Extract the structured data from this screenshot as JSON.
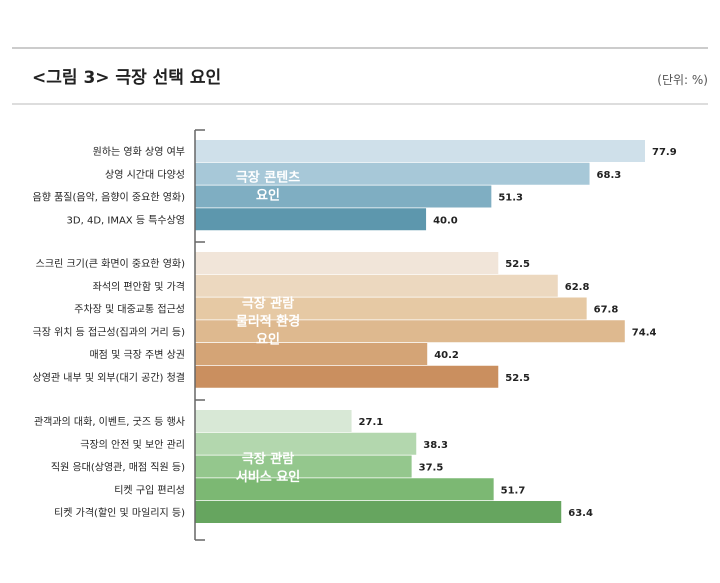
{
  "header": {
    "title": "<그림 3> 극장 선택 요인",
    "unit": "(단위: %)"
  },
  "colors": {
    "rule": "#bbbbbb",
    "axis": "#666666",
    "text": "#222222",
    "group_label_text": "#ffffff"
  },
  "chart_data": {
    "type": "bar",
    "orientation": "horizontal",
    "title": "<그림 3> 극장 선택 요인",
    "unit": "(단위: %)",
    "xlim": [
      0,
      100
    ],
    "groups": [
      {
        "label_lines": [
          "극장 콘텐츠",
          "요인"
        ],
        "items": [
          {
            "category": "원하는 영화 상영 여부",
            "value": 77.9,
            "color": "#cfe0ea"
          },
          {
            "category": "상영 시간대 다양성",
            "value": 68.3,
            "color": "#a7c8d8"
          },
          {
            "category": "음향 품질(음악, 음향이 중요한 영화)",
            "value": 51.3,
            "color": "#7faec2"
          },
          {
            "category": "3D, 4D, IMAX 등 특수상영",
            "value": 40.0,
            "color": "#5d97ad"
          }
        ]
      },
      {
        "label_lines": [
          "극장 관람",
          "물리적 환경",
          "요인"
        ],
        "items": [
          {
            "category": "스크린 크기(큰 화면이 중요한 영화)",
            "value": 52.5,
            "color": "#f1e5d9"
          },
          {
            "category": "좌석의 편안함 및 가격",
            "value": 62.8,
            "color": "#ecd8bf"
          },
          {
            "category": "주차장 및 대중교통 접근성",
            "value": 67.8,
            "color": "#e6c9a4"
          },
          {
            "category": "극장 위치 등 접근성(집과의 거리 등)",
            "value": 74.4,
            "color": "#deb98f"
          },
          {
            "category": "매점 및 극장 주변 상권",
            "value": 40.2,
            "color": "#d4a476"
          },
          {
            "category": "상영관 내부 및 외부(대기 공간) 청결",
            "value": 52.5,
            "color": "#ca8f5f"
          }
        ]
      },
      {
        "label_lines": [
          "극장 관람",
          "서비스 요인"
        ],
        "items": [
          {
            "category": "관객과의 대화, 이벤트, 굿즈 등 행사",
            "value": 27.1,
            "color": "#d8e8d6"
          },
          {
            "category": "극장의 안전 및 보안 관리",
            "value": 38.3,
            "color": "#b3d7ae"
          },
          {
            "category": "직원 응대(상영관, 매점 직원 등)",
            "value": 37.5,
            "color": "#94c78d"
          },
          {
            "category": "티켓 구입 편리성",
            "value": 51.7,
            "color": "#7cb873"
          },
          {
            "category": "티켓 가격(할인 및 마일리지 등)",
            "value": 63.4,
            "color": "#66a55f"
          }
        ]
      }
    ]
  }
}
